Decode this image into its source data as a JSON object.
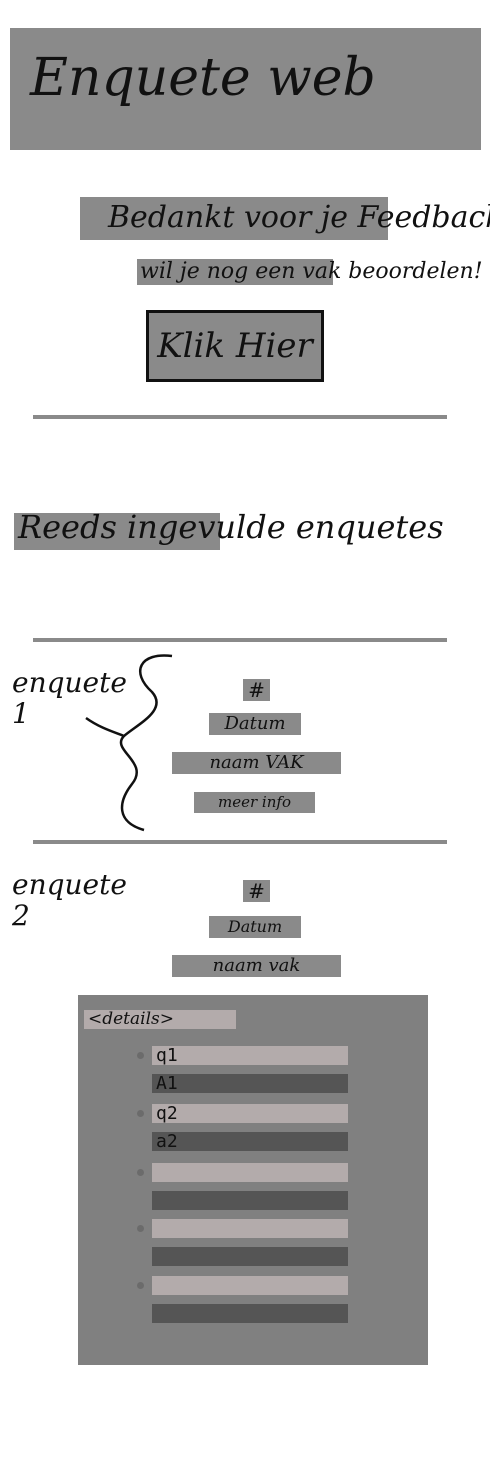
{
  "header": {
    "title": "Enquete web"
  },
  "thanks": {
    "message": "Bedankt voor je Feedback",
    "again_prompt": "wil je nog een vak beoordelen!",
    "click_button": "Klik Hier"
  },
  "filled_section": {
    "title": "Reeds ingevulde enquetes"
  },
  "enquetes": [
    {
      "label": "enquete\n1",
      "number": "#",
      "date": "Datum",
      "course_name": "naam VAK",
      "more_info": "meer info"
    },
    {
      "label": "enquete\n2",
      "number": "#",
      "date": "Datum",
      "course_name": "naam vak"
    }
  ],
  "details": {
    "summary": "<details>",
    "items": [
      {
        "question": "q1",
        "answer": "A1"
      },
      {
        "question": "q2",
        "answer": "a2"
      },
      {
        "question": "",
        "answer": ""
      },
      {
        "question": "",
        "answer": ""
      },
      {
        "question": "",
        "answer": ""
      }
    ]
  }
}
